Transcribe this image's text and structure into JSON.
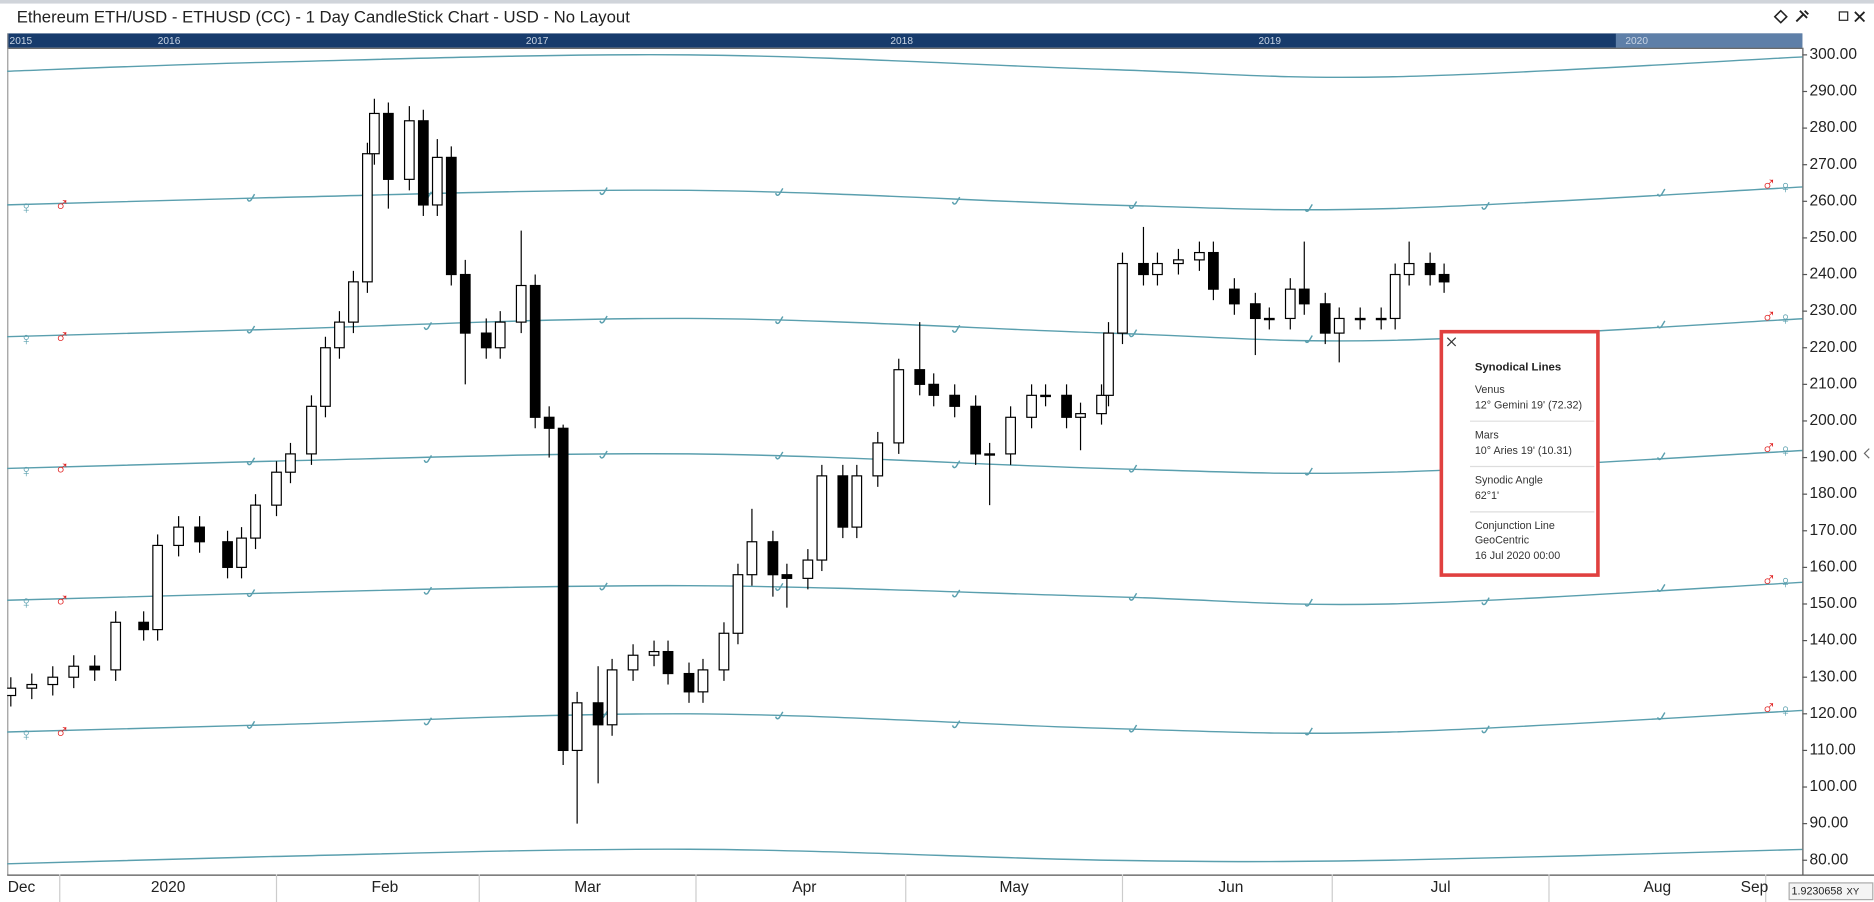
{
  "chart_data": {
    "type": "candlestick",
    "title": "Ethereum ETH/USD - ETHUSD (CC) - 1 Day CandleStick Chart - USD - No Layout",
    "navigator": [
      "2015",
      "2016",
      "2017",
      "2018",
      "2019",
      "2020"
    ],
    "x": [
      -7,
      -4,
      -1,
      2,
      5,
      8,
      12,
      14,
      17,
      20,
      24,
      26,
      28,
      31,
      33,
      36,
      38,
      40,
      42,
      44,
      45,
      47,
      50,
      52,
      54,
      56,
      58,
      61,
      63,
      66,
      68,
      70,
      72,
      74,
      77,
      79,
      82,
      85,
      87,
      90,
      92,
      95,
      97,
      99,
      102,
      104,
      107,
      109,
      112,
      114,
      117,
      120,
      123,
      125,
      128,
      131,
      133,
      136,
      139,
      141,
      144,
      146,
      149,
      150,
      152,
      155,
      157,
      160,
      163,
      165,
      168,
      171,
      173,
      176,
      178,
      181,
      183,
      186,
      189,
      191,
      193,
      196,
      198
    ],
    "open": [
      125,
      127,
      128,
      130,
      133,
      132,
      145,
      143,
      166,
      171,
      167,
      160,
      168,
      177,
      186,
      191,
      204,
      220,
      227,
      238,
      273,
      284,
      266,
      282,
      259,
      272,
      240,
      224,
      220,
      227,
      237,
      201,
      198,
      110,
      123,
      117,
      132,
      136,
      137,
      131,
      126,
      132,
      142,
      158,
      167,
      158,
      157,
      162,
      185,
      171,
      185,
      194,
      214,
      210,
      207,
      204,
      191,
      191,
      201,
      207,
      207,
      201,
      202,
      207,
      224,
      243,
      240,
      243,
      244,
      246,
      236,
      232,
      228,
      228,
      236,
      232,
      224,
      228,
      228,
      228,
      240,
      243,
      240
    ],
    "high": [
      130,
      131,
      133,
      136,
      136,
      148,
      148,
      169,
      174,
      174,
      170,
      171,
      180,
      189,
      194,
      207,
      223,
      230,
      241,
      276,
      288,
      287,
      286,
      285,
      277,
      275,
      244,
      228,
      230,
      252,
      240,
      204,
      199,
      126,
      133,
      135,
      139,
      140,
      140,
      134,
      135,
      145,
      161,
      176,
      170,
      161,
      165,
      188,
      188,
      188,
      197,
      217,
      227,
      213,
      210,
      207,
      194,
      204,
      210,
      210,
      210,
      205,
      210,
      227,
      246,
      253,
      246,
      247,
      249,
      249,
      239,
      235,
      231,
      239,
      249,
      235,
      231,
      231,
      231,
      243,
      249,
      246,
      243
    ],
    "low": [
      122,
      124,
      125,
      127,
      129,
      129,
      140,
      140,
      163,
      164,
      157,
      157,
      165,
      174,
      183,
      188,
      201,
      217,
      224,
      235,
      270,
      258,
      263,
      256,
      256,
      237,
      210,
      217,
      217,
      224,
      198,
      190,
      106,
      90,
      101,
      114,
      129,
      133,
      128,
      123,
      123,
      129,
      139,
      155,
      152,
      149,
      154,
      159,
      168,
      168,
      182,
      191,
      207,
      204,
      201,
      188,
      177,
      188,
      198,
      204,
      198,
      192,
      199,
      204,
      221,
      237,
      237,
      240,
      241,
      233,
      229,
      218,
      225,
      225,
      229,
      221,
      216,
      225,
      225,
      225,
      237,
      237,
      235
    ],
    "close": [
      127,
      128,
      130,
      133,
      132,
      145,
      143,
      166,
      171,
      167,
      160,
      168,
      177,
      186,
      191,
      204,
      220,
      227,
      238,
      273,
      284,
      266,
      282,
      259,
      272,
      240,
      224,
      220,
      227,
      237,
      201,
      198,
      110,
      123,
      117,
      132,
      136,
      137,
      131,
      126,
      132,
      142,
      158,
      167,
      158,
      157,
      162,
      185,
      171,
      185,
      194,
      214,
      210,
      207,
      204,
      191,
      191,
      201,
      207,
      207,
      201,
      202,
      207,
      224,
      243,
      240,
      243,
      244,
      246,
      236,
      232,
      228,
      228,
      236,
      232,
      224,
      228,
      228,
      228,
      240,
      243,
      240,
      238
    ],
    "up_color": "#ffffff",
    "down_color": "#000000",
    "overlay_color": "#5a9fae",
    "overlay_x": [
      -8,
      30,
      90,
      150,
      190,
      250
    ],
    "overlay_lines": [
      {
        "values": [
          295.5,
          298,
          300,
          296,
          294,
          299.5
        ]
      },
      {
        "values": [
          259,
          261,
          263,
          259,
          258,
          264
        ]
      },
      {
        "values": [
          223,
          225,
          228,
          224,
          222,
          228
        ]
      },
      {
        "values": [
          187,
          189,
          191,
          187,
          186,
          192
        ]
      },
      {
        "values": [
          151,
          153,
          155,
          152,
          150,
          156
        ]
      },
      {
        "values": [
          115,
          117,
          120,
          116,
          115,
          121
        ]
      },
      {
        "values": [
          79,
          81,
          83,
          80,
          80,
          83
        ]
      }
    ],
    "symbols": {
      "venus": "♀",
      "mars": "♂"
    },
    "ylim": [
      76,
      302
    ],
    "yticks": [
      {
        "value": 300,
        "label": "300.00"
      },
      {
        "value": 290,
        "label": "290.00"
      },
      {
        "value": 280,
        "label": "280.00"
      },
      {
        "value": 270,
        "label": "270.00"
      },
      {
        "value": 260,
        "label": "260.00"
      },
      {
        "value": 250,
        "label": "250.00"
      },
      {
        "value": 240,
        "label": "240.00"
      },
      {
        "value": 230,
        "label": "230.00"
      },
      {
        "value": 220,
        "label": "220.00"
      },
      {
        "value": 210,
        "label": "210.00"
      },
      {
        "value": 200,
        "label": "200.00"
      },
      {
        "value": 190,
        "label": "190.00"
      },
      {
        "value": 180,
        "label": "180.00"
      },
      {
        "value": 170,
        "label": "170.00"
      },
      {
        "value": 160,
        "label": "160.00"
      },
      {
        "value": 150,
        "label": "150.00"
      },
      {
        "value": 140,
        "label": "140.00"
      },
      {
        "value": 130,
        "label": "130.00"
      },
      {
        "value": 120,
        "label": "120.00"
      },
      {
        "value": 110,
        "label": "110.00"
      },
      {
        "value": 100,
        "label": "100.00"
      },
      {
        "value": 90,
        "label": "90.00"
      },
      {
        "value": 80,
        "label": "80.00"
      }
    ],
    "xlim": [
      -8,
      250
    ],
    "xticks": [
      {
        "value": -31,
        "label": "Dec"
      },
      {
        "value": 0,
        "label": "2020"
      },
      {
        "value": 31,
        "label": "Feb"
      },
      {
        "value": 60,
        "label": "Mar"
      },
      {
        "value": 91,
        "label": "Apr"
      },
      {
        "value": 121,
        "label": "May"
      },
      {
        "value": 152,
        "label": "Jun"
      },
      {
        "value": 182,
        "label": "Jul"
      },
      {
        "value": 213,
        "label": "Aug"
      },
      {
        "value": 244,
        "label": "Sep"
      }
    ]
  },
  "tooltip": {
    "title": "Synodical Lines",
    "lines": [
      "Venus",
      "12° Gemini 19' (72.32)",
      "Mars",
      "10° Aries 19' (10.31)",
      "Synodic Angle",
      "62°1'",
      "Conjunction Line",
      "GeoCentric",
      "16 Jul 2020 00:00"
    ]
  },
  "footer": {
    "scale": "1.9230658",
    "mode": "XY"
  }
}
